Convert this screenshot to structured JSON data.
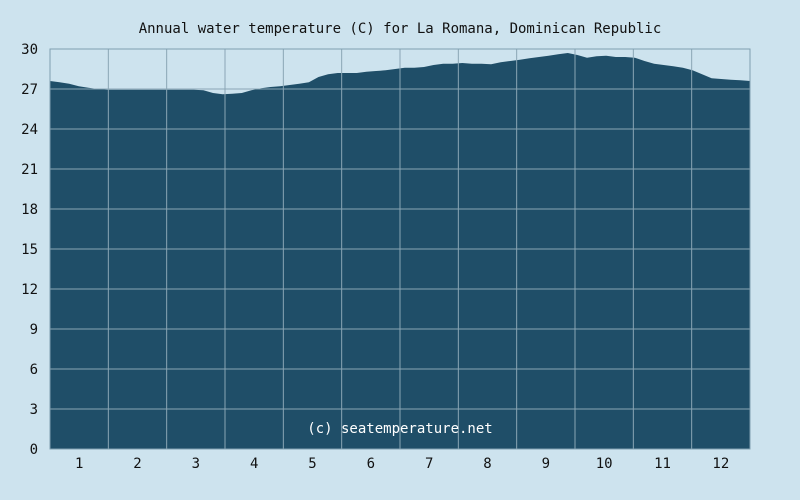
{
  "chart_data": {
    "type": "area",
    "title": "Annual water temperature (C) for La Romana, Dominican Republic",
    "xlabel": "",
    "ylabel": "",
    "x_tick_labels": [
      "1",
      "2",
      "3",
      "4",
      "5",
      "6",
      "7",
      "8",
      "9",
      "10",
      "11",
      "12"
    ],
    "y_tick_labels": [
      "0",
      "3",
      "6",
      "9",
      "12",
      "15",
      "18",
      "21",
      "24",
      "27",
      "30"
    ],
    "ylim": [
      0,
      30
    ],
    "xlim": [
      0,
      365
    ],
    "grid": true,
    "credit": "(c) seatemperature.net",
    "colors": {
      "fill": "#1f4e68",
      "background": "#cde3ee",
      "grid": "#8aa6b5"
    },
    "series": [
      {
        "x": [
          0,
          5,
          10,
          15,
          20,
          25,
          30,
          35,
          40,
          45,
          50,
          55,
          60,
          65,
          70,
          75,
          80,
          85,
          90,
          95,
          100,
          105,
          110,
          115,
          120,
          125,
          130,
          135,
          140,
          145,
          150,
          155,
          160,
          165,
          170,
          175,
          180,
          185,
          190,
          195,
          200,
          205,
          210,
          215,
          220,
          225,
          230,
          235,
          240,
          245,
          250,
          255,
          260,
          265,
          270,
          275,
          280,
          285,
          290,
          295,
          300,
          305,
          310,
          315,
          320,
          325,
          330,
          335,
          340,
          345,
          350,
          355,
          360,
          365
        ],
        "y": [
          27.6,
          27.5,
          27.4,
          27.2,
          27.1,
          27.0,
          26.95,
          26.95,
          26.95,
          26.95,
          26.95,
          26.95,
          26.95,
          26.95,
          26.95,
          26.95,
          26.9,
          26.7,
          26.6,
          26.65,
          26.7,
          26.9,
          27.05,
          27.15,
          27.2,
          27.3,
          27.4,
          27.5,
          27.9,
          28.1,
          28.2,
          28.2,
          28.2,
          28.3,
          28.35,
          28.4,
          28.5,
          28.6,
          28.6,
          28.65,
          28.8,
          28.9,
          28.9,
          28.95,
          28.9,
          28.9,
          28.85,
          29.0,
          29.1,
          29.2,
          29.3,
          29.4,
          29.5,
          29.6,
          29.7,
          29.55,
          29.35,
          29.45,
          29.5,
          29.4,
          29.4,
          29.35,
          29.1,
          28.9,
          28.8,
          28.7,
          28.6,
          28.4,
          28.1,
          27.8,
          27.75,
          27.7,
          27.65,
          27.6
        ]
      }
    ]
  }
}
